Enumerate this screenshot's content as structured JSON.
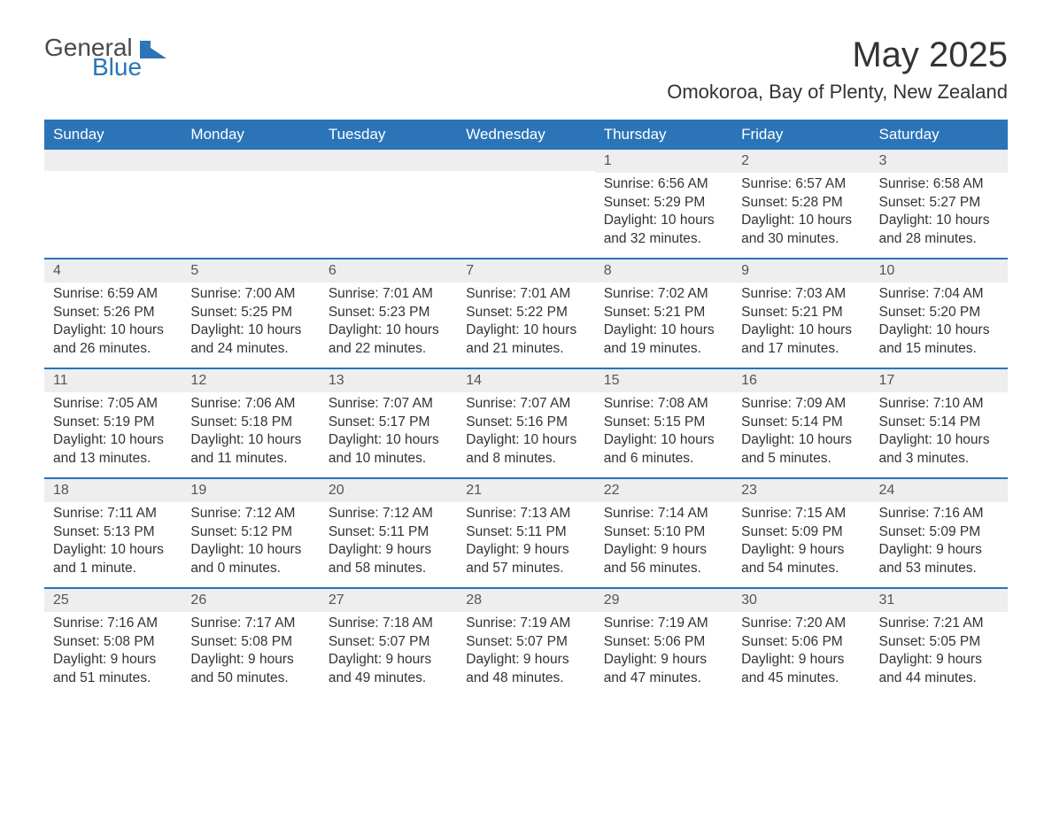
{
  "brand": {
    "name_part1": "General",
    "name_part2": "Blue",
    "accent_color": "#2b74b8",
    "text_color": "#4a4a4a"
  },
  "header": {
    "month_title": "May 2025",
    "location": "Omokoroa, Bay of Plenty, New Zealand"
  },
  "colors": {
    "header_bg": "#2b74b8",
    "header_text": "#ffffff",
    "daynum_bg": "#eeeeee",
    "body_text": "#333333",
    "row_border": "#2b74b8",
    "page_bg": "#ffffff"
  },
  "typography": {
    "month_title_fontsize": 40,
    "location_fontsize": 22,
    "day_header_fontsize": 17,
    "cell_fontsize": 15.5,
    "font_family": "Arial"
  },
  "calendar": {
    "type": "table",
    "day_names": [
      "Sunday",
      "Monday",
      "Tuesday",
      "Wednesday",
      "Thursday",
      "Friday",
      "Saturday"
    ],
    "weeks": [
      [
        null,
        null,
        null,
        null,
        {
          "day": "1",
          "sunrise": "Sunrise: 6:56 AM",
          "sunset": "Sunset: 5:29 PM",
          "daylight1": "Daylight: 10 hours",
          "daylight2": "and 32 minutes."
        },
        {
          "day": "2",
          "sunrise": "Sunrise: 6:57 AM",
          "sunset": "Sunset: 5:28 PM",
          "daylight1": "Daylight: 10 hours",
          "daylight2": "and 30 minutes."
        },
        {
          "day": "3",
          "sunrise": "Sunrise: 6:58 AM",
          "sunset": "Sunset: 5:27 PM",
          "daylight1": "Daylight: 10 hours",
          "daylight2": "and 28 minutes."
        }
      ],
      [
        {
          "day": "4",
          "sunrise": "Sunrise: 6:59 AM",
          "sunset": "Sunset: 5:26 PM",
          "daylight1": "Daylight: 10 hours",
          "daylight2": "and 26 minutes."
        },
        {
          "day": "5",
          "sunrise": "Sunrise: 7:00 AM",
          "sunset": "Sunset: 5:25 PM",
          "daylight1": "Daylight: 10 hours",
          "daylight2": "and 24 minutes."
        },
        {
          "day": "6",
          "sunrise": "Sunrise: 7:01 AM",
          "sunset": "Sunset: 5:23 PM",
          "daylight1": "Daylight: 10 hours",
          "daylight2": "and 22 minutes."
        },
        {
          "day": "7",
          "sunrise": "Sunrise: 7:01 AM",
          "sunset": "Sunset: 5:22 PM",
          "daylight1": "Daylight: 10 hours",
          "daylight2": "and 21 minutes."
        },
        {
          "day": "8",
          "sunrise": "Sunrise: 7:02 AM",
          "sunset": "Sunset: 5:21 PM",
          "daylight1": "Daylight: 10 hours",
          "daylight2": "and 19 minutes."
        },
        {
          "day": "9",
          "sunrise": "Sunrise: 7:03 AM",
          "sunset": "Sunset: 5:21 PM",
          "daylight1": "Daylight: 10 hours",
          "daylight2": "and 17 minutes."
        },
        {
          "day": "10",
          "sunrise": "Sunrise: 7:04 AM",
          "sunset": "Sunset: 5:20 PM",
          "daylight1": "Daylight: 10 hours",
          "daylight2": "and 15 minutes."
        }
      ],
      [
        {
          "day": "11",
          "sunrise": "Sunrise: 7:05 AM",
          "sunset": "Sunset: 5:19 PM",
          "daylight1": "Daylight: 10 hours",
          "daylight2": "and 13 minutes."
        },
        {
          "day": "12",
          "sunrise": "Sunrise: 7:06 AM",
          "sunset": "Sunset: 5:18 PM",
          "daylight1": "Daylight: 10 hours",
          "daylight2": "and 11 minutes."
        },
        {
          "day": "13",
          "sunrise": "Sunrise: 7:07 AM",
          "sunset": "Sunset: 5:17 PM",
          "daylight1": "Daylight: 10 hours",
          "daylight2": "and 10 minutes."
        },
        {
          "day": "14",
          "sunrise": "Sunrise: 7:07 AM",
          "sunset": "Sunset: 5:16 PM",
          "daylight1": "Daylight: 10 hours",
          "daylight2": "and 8 minutes."
        },
        {
          "day": "15",
          "sunrise": "Sunrise: 7:08 AM",
          "sunset": "Sunset: 5:15 PM",
          "daylight1": "Daylight: 10 hours",
          "daylight2": "and 6 minutes."
        },
        {
          "day": "16",
          "sunrise": "Sunrise: 7:09 AM",
          "sunset": "Sunset: 5:14 PM",
          "daylight1": "Daylight: 10 hours",
          "daylight2": "and 5 minutes."
        },
        {
          "day": "17",
          "sunrise": "Sunrise: 7:10 AM",
          "sunset": "Sunset: 5:14 PM",
          "daylight1": "Daylight: 10 hours",
          "daylight2": "and 3 minutes."
        }
      ],
      [
        {
          "day": "18",
          "sunrise": "Sunrise: 7:11 AM",
          "sunset": "Sunset: 5:13 PM",
          "daylight1": "Daylight: 10 hours",
          "daylight2": "and 1 minute."
        },
        {
          "day": "19",
          "sunrise": "Sunrise: 7:12 AM",
          "sunset": "Sunset: 5:12 PM",
          "daylight1": "Daylight: 10 hours",
          "daylight2": "and 0 minutes."
        },
        {
          "day": "20",
          "sunrise": "Sunrise: 7:12 AM",
          "sunset": "Sunset: 5:11 PM",
          "daylight1": "Daylight: 9 hours",
          "daylight2": "and 58 minutes."
        },
        {
          "day": "21",
          "sunrise": "Sunrise: 7:13 AM",
          "sunset": "Sunset: 5:11 PM",
          "daylight1": "Daylight: 9 hours",
          "daylight2": "and 57 minutes."
        },
        {
          "day": "22",
          "sunrise": "Sunrise: 7:14 AM",
          "sunset": "Sunset: 5:10 PM",
          "daylight1": "Daylight: 9 hours",
          "daylight2": "and 56 minutes."
        },
        {
          "day": "23",
          "sunrise": "Sunrise: 7:15 AM",
          "sunset": "Sunset: 5:09 PM",
          "daylight1": "Daylight: 9 hours",
          "daylight2": "and 54 minutes."
        },
        {
          "day": "24",
          "sunrise": "Sunrise: 7:16 AM",
          "sunset": "Sunset: 5:09 PM",
          "daylight1": "Daylight: 9 hours",
          "daylight2": "and 53 minutes."
        }
      ],
      [
        {
          "day": "25",
          "sunrise": "Sunrise: 7:16 AM",
          "sunset": "Sunset: 5:08 PM",
          "daylight1": "Daylight: 9 hours",
          "daylight2": "and 51 minutes."
        },
        {
          "day": "26",
          "sunrise": "Sunrise: 7:17 AM",
          "sunset": "Sunset: 5:08 PM",
          "daylight1": "Daylight: 9 hours",
          "daylight2": "and 50 minutes."
        },
        {
          "day": "27",
          "sunrise": "Sunrise: 7:18 AM",
          "sunset": "Sunset: 5:07 PM",
          "daylight1": "Daylight: 9 hours",
          "daylight2": "and 49 minutes."
        },
        {
          "day": "28",
          "sunrise": "Sunrise: 7:19 AM",
          "sunset": "Sunset: 5:07 PM",
          "daylight1": "Daylight: 9 hours",
          "daylight2": "and 48 minutes."
        },
        {
          "day": "29",
          "sunrise": "Sunrise: 7:19 AM",
          "sunset": "Sunset: 5:06 PM",
          "daylight1": "Daylight: 9 hours",
          "daylight2": "and 47 minutes."
        },
        {
          "day": "30",
          "sunrise": "Sunrise: 7:20 AM",
          "sunset": "Sunset: 5:06 PM",
          "daylight1": "Daylight: 9 hours",
          "daylight2": "and 45 minutes."
        },
        {
          "day": "31",
          "sunrise": "Sunrise: 7:21 AM",
          "sunset": "Sunset: 5:05 PM",
          "daylight1": "Daylight: 9 hours",
          "daylight2": "and 44 minutes."
        }
      ]
    ]
  }
}
